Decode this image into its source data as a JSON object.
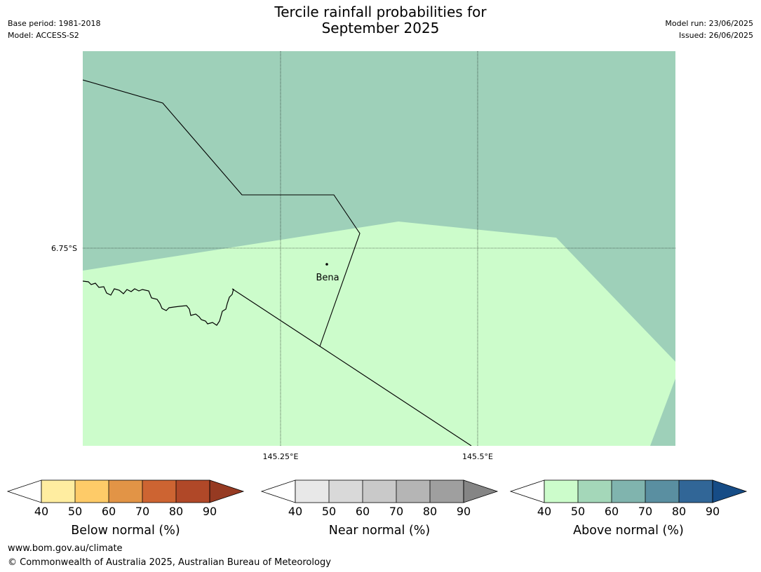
{
  "title": {
    "line1": "Tercile rainfall probabilities for",
    "line2": "September 2025"
  },
  "meta_left": {
    "base_period": "Base period: 1981-2018",
    "model": "Model: ACCESS-S2"
  },
  "meta_right": {
    "model_run": "Model run: 23/06/2025",
    "issued": "Issued: 26/06/2025"
  },
  "map": {
    "lat_labels": [
      "6.75°S"
    ],
    "lon_labels": [
      "145.25°E",
      "145.5°E"
    ],
    "place": "Bena",
    "colors": {
      "above_50_60": "#9ed0b9",
      "above_40_50": "#ccfccb"
    }
  },
  "colorbars": [
    {
      "title": "Below normal (%)",
      "ticks": [
        "40",
        "50",
        "60",
        "70",
        "80",
        "90"
      ],
      "colors": [
        "#ffeda0",
        "#fecb68",
        "#e29446",
        "#cd6432",
        "#b04828",
        "#963a22"
      ]
    },
    {
      "title": "Near normal (%)",
      "ticks": [
        "40",
        "50",
        "60",
        "70",
        "80",
        "90"
      ],
      "colors": [
        "#e8e8e8",
        "#d9d9d9",
        "#c9c9c9",
        "#b5b5b5",
        "#9f9f9f",
        "#858585"
      ]
    },
    {
      "title": "Above normal (%)",
      "ticks": [
        "40",
        "50",
        "60",
        "70",
        "80",
        "90"
      ],
      "colors": [
        "#ccfccb",
        "#a4d7b9",
        "#80b4ae",
        "#5a8fa1",
        "#316697",
        "#164c86"
      ]
    }
  ],
  "footer": {
    "url": "www.bom.gov.au/climate",
    "copyright": "© Commonwealth of Australia 2025, Australian Bureau of Meteorology"
  }
}
